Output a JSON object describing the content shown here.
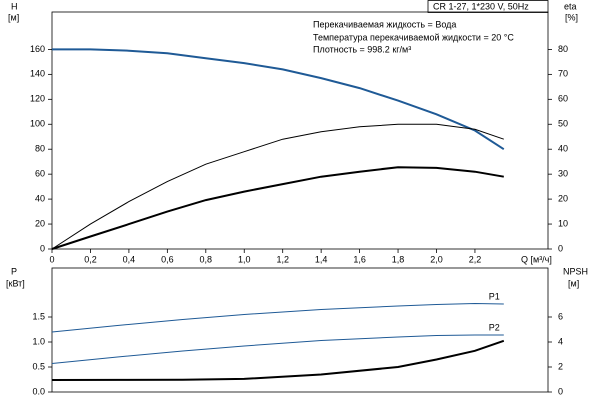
{
  "chart_data": [
    {
      "type": "line",
      "title": "CR 1-27, 1*230 V, 50Hz",
      "annotations": [
        "Перекачиваемая жидкость = Вода",
        "Температура перекачиваемой жидкости = 20 °C",
        "Плотность = 998.2 кг/м³"
      ],
      "ylabel": "H",
      "yunit": "[м]",
      "y2label": "eta",
      "y2unit": "[%]",
      "xlabel": "Q [м³/ч]",
      "xlim": [
        0,
        2.58
      ],
      "ylim": [
        0,
        190
      ],
      "y2lim": [
        0,
        95
      ],
      "xticks": [
        0,
        {
          "value": 0.2,
          "label": "0,2"
        },
        {
          "value": 0.4,
          "label": "0,4"
        },
        {
          "value": 0.6,
          "label": "0,6"
        },
        {
          "value": 0.8,
          "label": "0,8"
        },
        {
          "value": 1.0,
          "label": "1,0"
        },
        {
          "value": 1.2,
          "label": "1,2"
        },
        {
          "value": 1.4,
          "label": "1,4"
        },
        {
          "value": 1.6,
          "label": "1,6"
        },
        {
          "value": 1.8,
          "label": "1,8"
        },
        {
          "value": 2.0,
          "label": "2,0"
        },
        {
          "value": 2.2,
          "label": "2,2"
        }
      ],
      "yticks": [
        0,
        20,
        40,
        60,
        80,
        100,
        120,
        140,
        160
      ],
      "y2ticks": [
        0,
        10,
        20,
        30,
        40,
        50,
        60,
        70,
        80
      ],
      "x": [
        0,
        0.2,
        0.4,
        0.6,
        0.8,
        1.0,
        1.2,
        1.4,
        1.6,
        1.8,
        2.0,
        2.2,
        2.35
      ],
      "series": [
        {
          "color": "#1f5a96",
          "width": 2,
          "values": [
            160,
            160,
            159,
            157,
            153,
            149,
            144,
            137,
            129,
            119,
            108,
            95,
            80
          ]
        },
        {
          "color": "#000000",
          "width": 1,
          "axis": "y2",
          "values": [
            0,
            10,
            19,
            27,
            34,
            39,
            44,
            47,
            49,
            50,
            50,
            48,
            44
          ]
        },
        {
          "color": "#000000",
          "width": 2,
          "axis": "y2",
          "values": [
            0,
            5,
            10,
            15,
            19.6,
            23,
            26,
            29,
            31,
            32.8,
            32.5,
            31,
            29
          ]
        }
      ]
    },
    {
      "type": "line",
      "ylabel": "P",
      "yunit": "[кВт]",
      "y2label": "NPSH",
      "y2unit": "[м]",
      "xlim": [
        0,
        2.58
      ],
      "ylim": [
        0,
        2.48
      ],
      "y2lim": [
        0,
        9.92
      ],
      "yticks": [
        {
          "value": 0,
          "label": "0.0"
        },
        {
          "value": 0.5,
          "label": "0.5"
        },
        {
          "value": 1.0,
          "label": "1.0"
        },
        {
          "value": 1.5,
          "label": "1.5"
        }
      ],
      "y2ticks": [
        0,
        2,
        4,
        6
      ],
      "x": [
        0,
        0.34,
        0.68,
        1.0,
        1.4,
        1.8,
        2.0,
        2.2,
        2.35
      ],
      "series": [
        {
          "name": "P1",
          "color": "#1f5a96",
          "width": 1,
          "values": [
            1.2,
            1.33,
            1.45,
            1.55,
            1.65,
            1.72,
            1.75,
            1.77,
            1.76
          ]
        },
        {
          "name": "P2",
          "color": "#1f5a96",
          "width": 1,
          "values": [
            0.57,
            0.7,
            0.82,
            0.92,
            1.03,
            1.1,
            1.13,
            1.14,
            1.14
          ]
        },
        {
          "color": "#000000",
          "width": 2,
          "axis": "y2",
          "values": [
            0.96,
            0.97,
            0.98,
            1.05,
            1.4,
            2.0,
            2.6,
            3.3,
            4.1
          ]
        }
      ]
    }
  ]
}
